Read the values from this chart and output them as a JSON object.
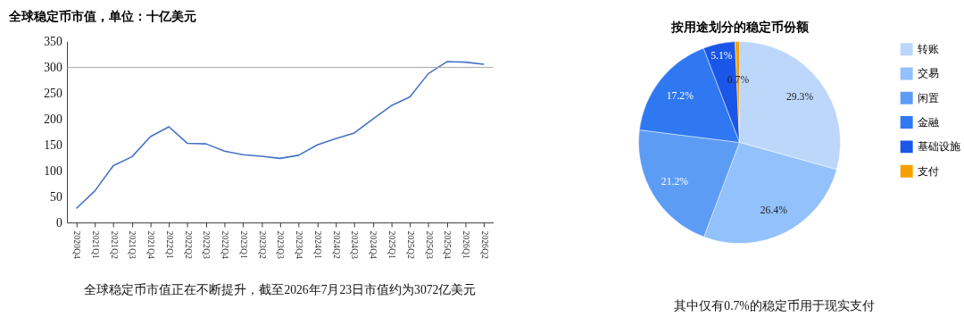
{
  "chart_data": [
    {
      "type": "line",
      "title": "全球稳定币市值，单位：十亿美元",
      "categories": [
        "2020Q4",
        "2021Q1",
        "2021Q2",
        "2021Q3",
        "2021Q4",
        "2022Q1",
        "2022Q2",
        "2022Q3",
        "2022Q4",
        "2023Q1",
        "2023Q2",
        "2023Q3",
        "2023Q4",
        "2024Q1",
        "2024Q2",
        "2024Q3",
        "2024Q4",
        "2025Q1",
        "2025Q2",
        "2025Q3",
        "2025Q4",
        "2026Q1",
        "2026Q2"
      ],
      "series": [
        {
          "color": "#4472c4",
          "values": [
            27,
            61,
            110,
            127,
            166,
            185,
            153,
            152,
            138,
            131,
            128,
            124,
            130,
            150,
            162,
            173,
            200,
            226,
            243,
            288,
            311,
            310,
            306
          ]
        }
      ],
      "ylim": [
        0,
        350
      ],
      "yticks": [
        0,
        50,
        100,
        150,
        200,
        250,
        300,
        350
      ],
      "grid": false,
      "marker": "none",
      "line_style": "solid",
      "ref_lines": [
        {
          "axis": "y",
          "value": 300,
          "color": "#a6a6a6"
        }
      ],
      "annotations": [
        "全球稳定币市值正在不断提升，截至2026年7月23日市值约为3072亿美元"
      ]
    },
    {
      "type": "pie",
      "title": "按用途划分的稳定币份额",
      "categories": [
        "转账",
        "交易",
        "闲置",
        "金融",
        "基础设施",
        "支付"
      ],
      "values": [
        29.3,
        26.4,
        21.2,
        17.2,
        5.1,
        0.7
      ],
      "colors": [
        "#bdd7fb",
        "#92c1fb",
        "#5d9cf5",
        "#2f78f2",
        "#1a56e8",
        "#f5a000"
      ],
      "value_labels": [
        "29.3%",
        "26.4%",
        "21.2%",
        "17.2%",
        "5.1%",
        "0.7%"
      ],
      "legend": "right",
      "annotations": [
        "其中仅有0.7%的稳定币用于现实支付"
      ]
    }
  ]
}
